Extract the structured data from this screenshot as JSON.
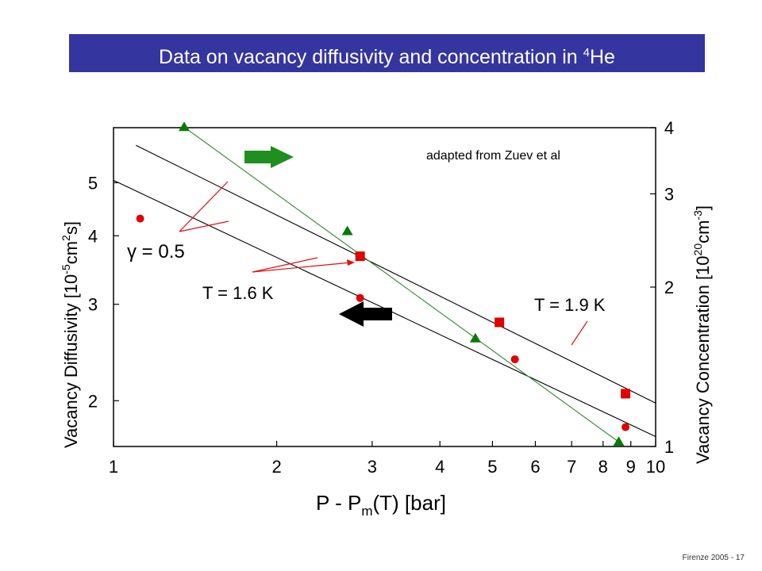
{
  "slide": {
    "title": "Data on vacancy diffusivity and concentration in ",
    "title_superscript": "4",
    "title_suffix": "He",
    "footer": "Firenze  2005 - 17"
  },
  "colors": {
    "title_bg": "#3535a0",
    "series_red": "#e00000",
    "series_green": "#0a7a0a",
    "fit_line": "#000000",
    "gamma_fit_line": "#2e8b2e",
    "arrow_green": "#1f8f1f",
    "arrow_black": "#000000",
    "callout": "#e01010"
  },
  "chart_data": {
    "type": "scatter",
    "scale": "log-log",
    "x_axis": {
      "label_parts": [
        "P  -  P",
        "m",
        "(T)   [bar]"
      ],
      "range": [
        1,
        10
      ],
      "ticks": [
        "1",
        "2",
        "3",
        "4",
        "5",
        "6",
        "7",
        "8",
        "9",
        "10"
      ]
    },
    "y_axis_left": {
      "label_parts": [
        "Vacancy Diffusivity  [10",
        "-5",
        "cm",
        "2",
        "s]"
      ],
      "range": [
        1.65,
        6.3
      ],
      "ticks": [
        "2",
        "3",
        "4",
        "5"
      ]
    },
    "y_axis_right": {
      "label_parts": [
        "Vacancy Concentration  [10",
        "20",
        "cm",
        "-3",
        "]"
      ],
      "range": [
        1,
        4
      ],
      "ticks": [
        "1",
        "2",
        "3",
        "4"
      ]
    },
    "annotations": {
      "source": "adapted from Zuev et al",
      "gamma": "γ = 0.5",
      "t_low": "T = 1.6 K",
      "t_high": "T = 1.9 K"
    },
    "series": [
      {
        "axis": "left",
        "marker": "circle",
        "color": "#e00000",
        "x": [
          1.12,
          2.85,
          5.5,
          8.8
        ],
        "y": [
          4.3,
          3.08,
          2.38,
          1.79
        ]
      },
      {
        "axis": "left",
        "marker": "square",
        "color": "#e00000",
        "x": [
          2.85,
          5.15,
          8.8
        ],
        "y": [
          3.67,
          2.78,
          2.06
        ]
      },
      {
        "axis": "right",
        "marker": "triangle",
        "color": "#0a7a0a",
        "x": [
          1.35,
          2.7,
          4.65,
          8.55
        ],
        "y": [
          4.01,
          2.55,
          1.6,
          1.02
        ]
      }
    ],
    "fit_lines": [
      {
        "color": "#000000",
        "axis": "left",
        "points": [
          [
            1.0,
            5.05
          ],
          [
            10.0,
            1.72
          ]
        ]
      },
      {
        "color": "#000000",
        "axis": "left",
        "points": [
          [
            1.1,
            5.85
          ],
          [
            10.0,
            1.98
          ]
        ]
      },
      {
        "color": "#2e8b2e",
        "axis": "right",
        "points": [
          [
            1.35,
            4.01
          ],
          [
            8.55,
            1.02
          ]
        ]
      }
    ]
  }
}
